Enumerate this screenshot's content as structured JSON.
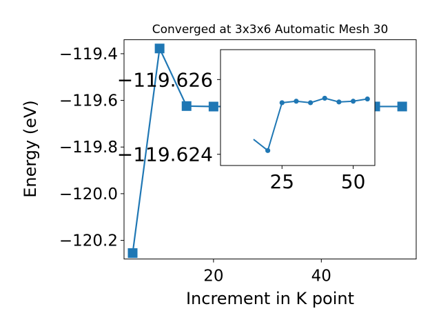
{
  "chart_data": [
    {
      "type": "line",
      "title": "Converged at 3x3x6 Automatic Mesh 30",
      "xlabel": "Increment in K point",
      "ylabel": "Energy (eV)",
      "xlim": [
        3.4,
        57.6
      ],
      "ylim": [
        -120.28,
        -119.34
      ],
      "x_ticks": [
        20,
        40
      ],
      "x_tick_labels": [
        "20",
        "40"
      ],
      "y_ticks": [
        -119.4,
        -119.6,
        -119.8,
        -120.0,
        -120.2
      ],
      "y_tick_labels": [
        "−119.4",
        "−119.6",
        "−119.8",
        "−120.0",
        "−120.2"
      ],
      "grid": false,
      "legend": "none",
      "marker": "square",
      "color": "#1f77b4",
      "series": [
        {
          "x": [
            5,
            10,
            15,
            20,
            25,
            30,
            35,
            40,
            45,
            50,
            55
          ],
          "y": [
            -120.2545,
            -119.3775,
            -119.6244,
            -119.6265,
            -119.6262,
            -119.6264,
            -119.626,
            -119.6264,
            -119.6262,
            -119.6262,
            -119.6263
          ]
        }
      ]
    },
    {
      "type": "line",
      "inset": true,
      "xlim": [
        3.4,
        57.6
      ],
      "ylim": [
        -119.6237,
        -119.6268
      ],
      "x_ticks": [
        25,
        50
      ],
      "x_tick_labels": [
        "25",
        "50"
      ],
      "y_ticks": [
        -119.626,
        -119.624
      ],
      "y_tick_labels": [
        "−119.626",
        "−119.624"
      ],
      "grid": false,
      "marker": "circle",
      "color": "#1f77b4",
      "series": [
        {
          "x": [
            20,
            25,
            30,
            35,
            40,
            45,
            50,
            55
          ],
          "y": [
            -119.6241,
            -119.62538,
            -119.62542,
            -119.62538,
            -119.6255,
            -119.6254,
            -119.62542,
            -119.62548
          ]
        }
      ]
    }
  ]
}
